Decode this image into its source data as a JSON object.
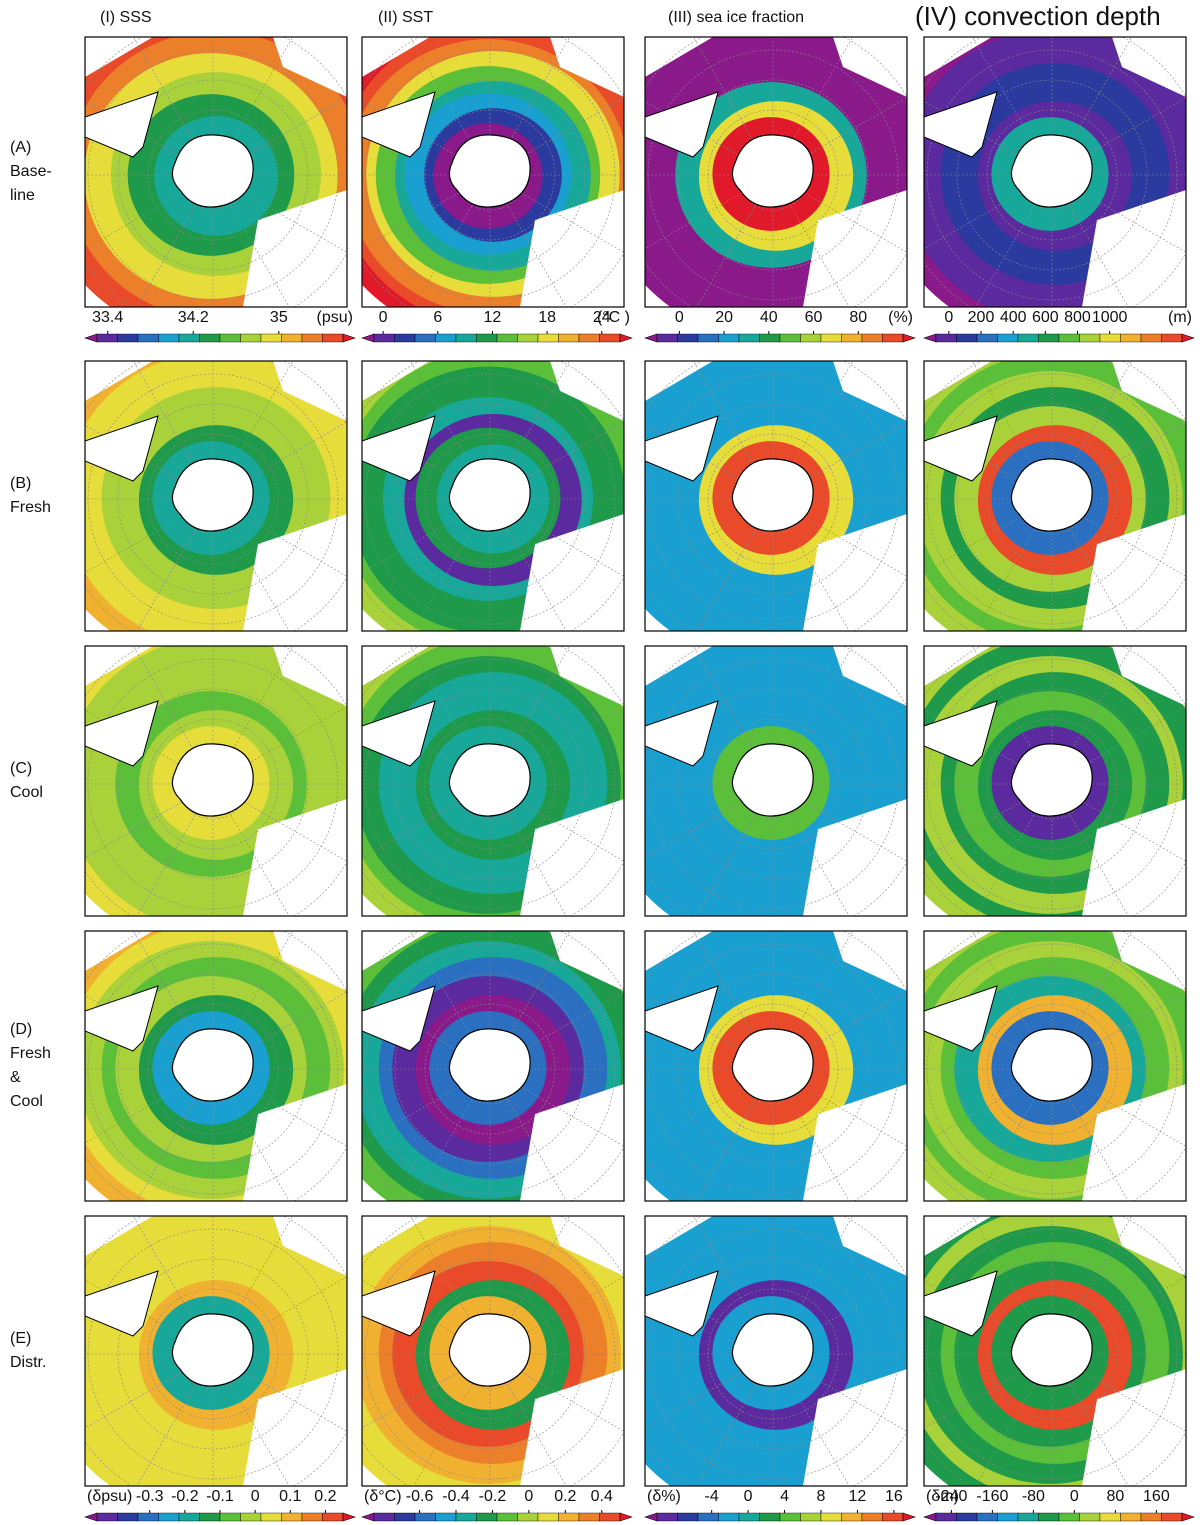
{
  "column_titles": [
    "(I) SSS",
    "(II) SST",
    "(III) sea ice fraction",
    "(IV) convection depth"
  ],
  "row_labels": [
    [
      "(A)",
      "Base-",
      "line"
    ],
    [
      "(B)",
      "Fresh"
    ],
    [
      "(C)",
      "Cool"
    ],
    [
      "(D)",
      "Fresh",
      " &",
      "Cool"
    ],
    [
      "(E)",
      "Distr."
    ]
  ],
  "colors": [
    "#8a1a8a",
    "#5a2a9e",
    "#2b3a9e",
    "#2a6fc0",
    "#1aa0d0",
    "#17a89a",
    "#1e9a4a",
    "#5cbf3a",
    "#a8d13a",
    "#e6dc3a",
    "#f0b030",
    "#ec7f2a",
    "#e84a2a",
    "#e01a2a"
  ],
  "colorbars": {
    "top": [
      {
        "ticks": [
          33.4,
          34.2,
          35
        ],
        "unit": "(psu)",
        "lim": [
          33.3,
          35.6
        ]
      },
      {
        "ticks": [
          0,
          6,
          12,
          18,
          24
        ],
        "unit": "(°C )",
        "lim": [
          -1,
          26
        ]
      },
      {
        "ticks": [
          0,
          20,
          40,
          60,
          80
        ],
        "unit": "(%)",
        "lim": [
          -10,
          100
        ]
      },
      {
        "ticks": [
          0,
          200,
          400,
          600,
          800,
          1000
        ],
        "unit": "(m)",
        "lim": [
          -80,
          1450
        ]
      }
    ],
    "bottom": [
      {
        "ticks": [
          -0.3,
          -0.2,
          -0.1,
          0,
          0.1,
          0.2
        ],
        "unit": "(δpsu)",
        "lim": [
          -0.45,
          0.25
        ]
      },
      {
        "ticks": [
          -0.6,
          -0.4,
          -0.2,
          0,
          0.2,
          0.4
        ],
        "unit": "(δ°C)",
        "lim": [
          -0.85,
          0.5
        ]
      },
      {
        "ticks": [
          -4,
          0,
          4,
          8,
          12,
          16
        ],
        "unit": "(δ%)",
        "lim": [
          -10,
          17
        ]
      },
      {
        "ticks": [
          -240,
          -160,
          -80,
          0,
          80,
          160
        ],
        "unit": "(δm)",
        "lim": [
          -270,
          210
        ]
      }
    ]
  }
}
